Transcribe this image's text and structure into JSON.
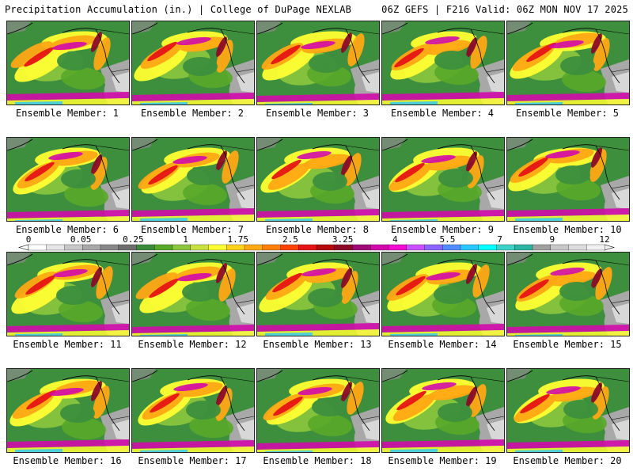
{
  "header": {
    "left": "Precipitation Accumulation (in.) | College of DuPage NEXLAB",
    "right": "06Z GEFS | F216 Valid: 06Z MON NOV 17 2025"
  },
  "colorbar": {
    "tick_labels": [
      "0",
      "0.05",
      "0.25",
      "1",
      "1.75",
      "2.5",
      "3.25",
      "4",
      "5.5",
      "7",
      "9",
      "12"
    ],
    "colors": [
      "#ffffff",
      "#e6e6e6",
      "#c8c8c8",
      "#a8a8a8",
      "#888888",
      "#6e6e6e",
      "#3a8a3a",
      "#58a828",
      "#8cc63c",
      "#c8e040",
      "#ffff32",
      "#ffd21e",
      "#ffa814",
      "#ff7e0a",
      "#ff4400",
      "#e61414",
      "#b40a0a",
      "#8c0a28",
      "#a00a78",
      "#d20aaa",
      "#f00ad2",
      "#c850ff",
      "#8c64ff",
      "#508cff",
      "#28c8ff",
      "#00ffff",
      "#3cd2c8",
      "#28b4a0",
      "#a0a0a0",
      "#c8c8c8",
      "#dcdcdc",
      "#f0f0f0"
    ]
  },
  "panels": [
    {
      "label": "Ensemble Member: 1"
    },
    {
      "label": "Ensemble Member: 2"
    },
    {
      "label": "Ensemble Member: 3"
    },
    {
      "label": "Ensemble Member: 4"
    },
    {
      "label": "Ensemble Member: 5"
    },
    {
      "label": "Ensemble Member: 6"
    },
    {
      "label": "Ensemble Member: 7"
    },
    {
      "label": "Ensemble Member: 8"
    },
    {
      "label": "Ensemble Member: 9"
    },
    {
      "label": "Ensemble Member: 10"
    },
    {
      "label": "Ensemble Member: 11"
    },
    {
      "label": "Ensemble Member: 12"
    },
    {
      "label": "Ensemble Member: 13"
    },
    {
      "label": "Ensemble Member: 14"
    },
    {
      "label": "Ensemble Member: 15"
    },
    {
      "label": "Ensemble Member: 16"
    },
    {
      "label": "Ensemble Member: 17"
    },
    {
      "label": "Ensemble Member: 18"
    },
    {
      "label": "Ensemble Member: 19"
    },
    {
      "label": "Ensemble Member: 20"
    }
  ]
}
